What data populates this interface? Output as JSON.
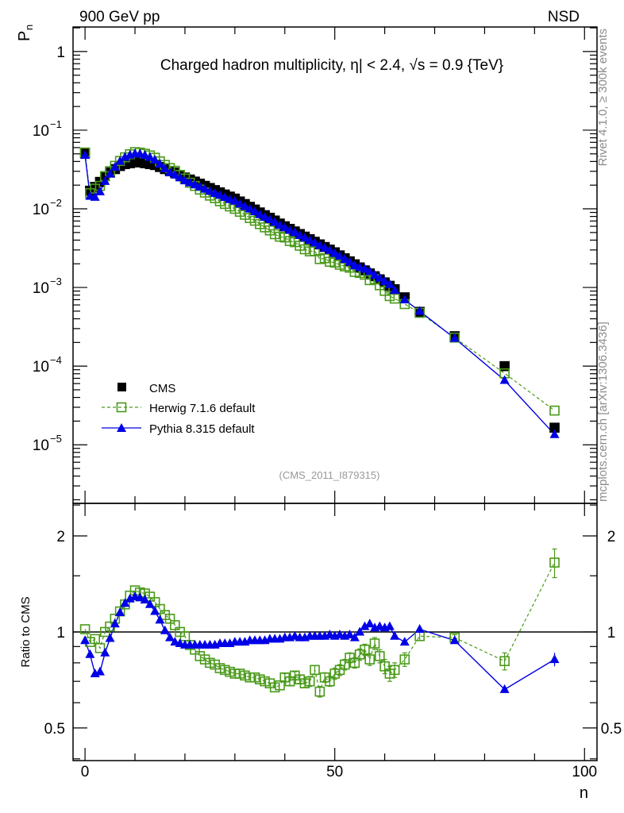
{
  "header": {
    "left": "900 GeV pp",
    "right": "NSD"
  },
  "side_labels": {
    "rivet": "Rivet 4.1.0, ≥ 300k events",
    "mcplots": "mcplots.cern.ch [arXiv:1306.3436]"
  },
  "analysis_id": "(CMS_2011_I879315)",
  "colors": {
    "cms": "#000000",
    "herwig": "#4a9a1a",
    "pythia": "#0000e6"
  },
  "chart_data": [
    {
      "type": "scatter",
      "title": "Charged hadron multiplicity, η| < 2.4, √s = 0.9 {TeV}",
      "ylabel": "P_n",
      "ylabel_main": "P",
      "ylabel_sub": "n",
      "xlabel": "n",
      "yscale": "log",
      "ylim": [
        1.8e-06,
        2.05
      ],
      "xlim": [
        -2.4,
        102.5
      ],
      "ytick_labels": [
        {
          "value": 1,
          "base": "1",
          "exp": ""
        },
        {
          "value": 0.1,
          "base": "10",
          "exp": "−1"
        },
        {
          "value": 0.01,
          "base": "10",
          "exp": "−2"
        },
        {
          "value": 0.001,
          "base": "10",
          "exp": "−3"
        },
        {
          "value": 0.0001,
          "base": "10",
          "exp": "−4"
        },
        {
          "value": 1e-05,
          "base": "10",
          "exp": "−5"
        }
      ],
      "legend": {
        "placement": "bottom-left",
        "entries": [
          "CMS",
          "Herwig 7.1.6 default",
          "Pythia 8.315 default"
        ]
      },
      "x": [
        0,
        1,
        2,
        3,
        4,
        5,
        6,
        7,
        8,
        9,
        10,
        11,
        12,
        13,
        14,
        15,
        16,
        17,
        18,
        19,
        20,
        21,
        22,
        23,
        24,
        25,
        26,
        27,
        28,
        29,
        30,
        31,
        32,
        33,
        34,
        35,
        36,
        37,
        38,
        39,
        40,
        41,
        42,
        43,
        44,
        45,
        46,
        47,
        48,
        49,
        50,
        51,
        52,
        53,
        54,
        55,
        56,
        57,
        58,
        59,
        60,
        61,
        62,
        64,
        67,
        74,
        84,
        94
      ],
      "series": [
        {
          "name": "CMS",
          "values": [
            0.051,
            0.017,
            0.019,
            0.022,
            0.026,
            0.029,
            0.032,
            0.035,
            0.037,
            0.038,
            0.039,
            0.039,
            0.038,
            0.037,
            0.036,
            0.034,
            0.032,
            0.03,
            0.029,
            0.027,
            0.025,
            0.0236,
            0.0222,
            0.0209,
            0.0196,
            0.0184,
            0.0173,
            0.0162,
            0.0152,
            0.0143,
            0.0135,
            0.0124,
            0.0115,
            0.0106,
            0.0098,
            0.009,
            0.0083,
            0.0077,
            0.0071,
            0.0065,
            0.006,
            0.00556,
            0.00516,
            0.00478,
            0.00443,
            0.00411,
            0.00381,
            0.00353,
            0.00327,
            0.00303,
            0.0028,
            0.00256,
            0.00235,
            0.00215,
            0.00197,
            0.0018,
            0.00165,
            0.00151,
            0.00139,
            0.00127,
            0.00116,
            0.00105,
            0.00095,
            0.00075,
            0.00049,
            0.00024,
            0.0001,
            1.65e-05
          ]
        },
        {
          "name": "Herwig 7.1.6 default",
          "derived_from_ratio": true
        },
        {
          "name": "Pythia 8.315 default",
          "derived_from_ratio": true
        }
      ]
    },
    {
      "type": "line",
      "ylabel": "Ratio to CMS",
      "xlabel": "n",
      "yscale": "log",
      "ylim": [
        0.395,
        2.53
      ],
      "ytick_labels": [
        "0.5",
        "1",
        "2"
      ],
      "ytick_values": [
        0.5,
        1,
        2
      ],
      "xtick_labels": [
        "0",
        "50",
        "100"
      ],
      "xtick_values": [
        0,
        50,
        100
      ],
      "reference": 1,
      "series": [
        {
          "name": "Herwig 7.1.6 default",
          "values": [
            1.02,
            0.93,
            0.95,
            0.89,
            1.0,
            1.04,
            1.1,
            1.16,
            1.22,
            1.3,
            1.35,
            1.33,
            1.32,
            1.29,
            1.24,
            1.18,
            1.13,
            1.1,
            1.05,
            1.0,
            0.97,
            0.91,
            0.88,
            0.84,
            0.82,
            0.8,
            0.79,
            0.77,
            0.76,
            0.75,
            0.74,
            0.74,
            0.73,
            0.72,
            0.72,
            0.71,
            0.7,
            0.69,
            0.67,
            0.68,
            0.72,
            0.7,
            0.73,
            0.71,
            0.69,
            0.7,
            0.76,
            0.65,
            0.72,
            0.7,
            0.74,
            0.76,
            0.79,
            0.83,
            0.8,
            0.85,
            0.88,
            0.82,
            0.92,
            0.84,
            0.78,
            0.74,
            0.76,
            0.82,
            0.97,
            0.96,
            0.81,
            1.65
          ],
          "errors": [
            0.01,
            0.01,
            0.01,
            0.01,
            0.01,
            0.01,
            0.01,
            0.01,
            0.01,
            0.01,
            0.01,
            0.01,
            0.01,
            0.01,
            0.01,
            0.01,
            0.01,
            0.01,
            0.01,
            0.01,
            0.01,
            0.01,
            0.01,
            0.01,
            0.01,
            0.01,
            0.01,
            0.01,
            0.01,
            0.01,
            0.01,
            0.01,
            0.01,
            0.01,
            0.01,
            0.015,
            0.015,
            0.015,
            0.015,
            0.015,
            0.02,
            0.02,
            0.02,
            0.02,
            0.02,
            0.025,
            0.025,
            0.025,
            0.025,
            0.025,
            0.03,
            0.03,
            0.03,
            0.03,
            0.03,
            0.035,
            0.035,
            0.035,
            0.04,
            0.04,
            0.04,
            0.04,
            0.04,
            0.04,
            0.03,
            0.02,
            0.05,
            0.17
          ]
        },
        {
          "name": "Pythia 8.315 default",
          "values": [
            0.94,
            0.85,
            0.74,
            0.75,
            0.86,
            0.955,
            1.06,
            1.15,
            1.23,
            1.27,
            1.29,
            1.28,
            1.26,
            1.22,
            1.16,
            1.09,
            1.01,
            0.96,
            0.93,
            0.92,
            0.91,
            0.91,
            0.91,
            0.91,
            0.91,
            0.91,
            0.91,
            0.92,
            0.92,
            0.92,
            0.93,
            0.93,
            0.93,
            0.94,
            0.94,
            0.94,
            0.94,
            0.95,
            0.95,
            0.95,
            0.96,
            0.96,
            0.97,
            0.96,
            0.96,
            0.97,
            0.97,
            0.97,
            0.97,
            0.98,
            0.97,
            0.98,
            0.97,
            0.98,
            0.96,
            1.0,
            1.04,
            1.06,
            1.03,
            1.04,
            1.03,
            1.04,
            0.97,
            0.93,
            1.02,
            0.94,
            0.66,
            0.82
          ],
          "errors": [
            0,
            0,
            0,
            0,
            0,
            0,
            0,
            0,
            0,
            0,
            0,
            0,
            0,
            0,
            0,
            0,
            0,
            0,
            0,
            0,
            0,
            0,
            0,
            0,
            0,
            0,
            0,
            0,
            0,
            0,
            0,
            0,
            0,
            0,
            0,
            0,
            0,
            0,
            0,
            0,
            0,
            0,
            0,
            0,
            0,
            0,
            0,
            0,
            0,
            0,
            0,
            0,
            0,
            0,
            0,
            0,
            0,
            0,
            0,
            0,
            0,
            0,
            0,
            0,
            0,
            0,
            0,
            0.04
          ]
        }
      ]
    }
  ]
}
